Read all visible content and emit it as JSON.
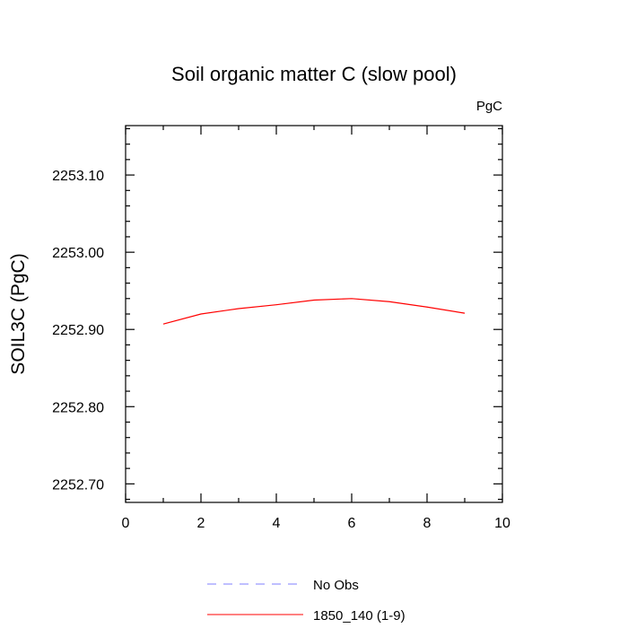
{
  "chart_data": {
    "type": "line",
    "title": "Soil organic matter C (slow pool)",
    "units_label": "PgC",
    "xlabel": "",
    "ylabel": "SOIL3C  (PgC)",
    "xlim": [
      0,
      10
    ],
    "ylim": [
      2252.676,
      2253.164
    ],
    "x_major_ticks": [
      0,
      2,
      4,
      6,
      8,
      10
    ],
    "x_minor_ticks": [
      1,
      3,
      5,
      7,
      9
    ],
    "y_major_ticks": [
      2252.7,
      2252.8,
      2252.9,
      2253.0,
      2253.1
    ],
    "y_tick_labels": [
      "2252.70",
      "2252.80",
      "2252.90",
      "2253.00",
      "2253.10"
    ],
    "y_minor_step": 0.02,
    "grid": false,
    "legend_position": "bottom",
    "series": [
      {
        "name": "1850_140 (1-9)",
        "color": "#ff0000",
        "dash": "solid",
        "x": [
          1,
          2,
          3,
          4,
          5,
          6,
          7,
          8,
          9
        ],
        "values": [
          2252.907,
          2252.92,
          2252.927,
          2252.932,
          2252.938,
          2252.94,
          2252.936,
          2252.929,
          2252.921
        ]
      }
    ],
    "legend": [
      {
        "label": "No Obs",
        "color": "#7f7fff",
        "dash": "dashed"
      },
      {
        "label": "1850_140 (1-9)",
        "color": "#ff0000",
        "dash": "solid"
      }
    ]
  }
}
